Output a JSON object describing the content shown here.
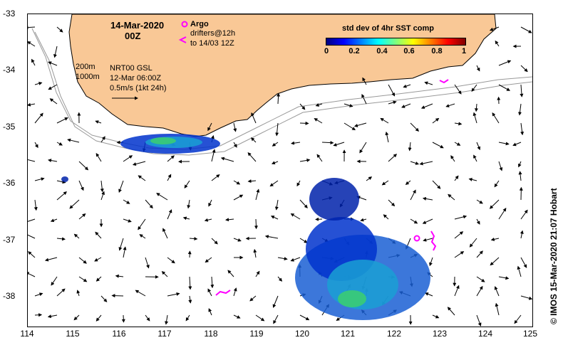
{
  "map": {
    "date": "14-Mar-2020",
    "time": "00Z",
    "argo_label": "Argo",
    "drifters_line1": "drifters@12h",
    "drifters_line2": "to 14/03 12Z",
    "contour_200": "200m",
    "contour_1000": "1000m",
    "product": "NRT00 GSL",
    "product_date": "12-Mar 06:00Z",
    "vector_scale": "0.5m/s (1kt 24h)",
    "colorbar_title": "std dev of 4hr SST comp",
    "colorbar_ticks": [
      "0",
      "0.2",
      "0.4",
      "0.6",
      "0.8",
      "1"
    ],
    "credit": "©  IMOS 15-Mar-2020 21:07 Hobart",
    "lat_labels": [
      "-33",
      "-34",
      "-35",
      "-36",
      "-37",
      "-38"
    ],
    "lon_labels": [
      "114",
      "115",
      "116",
      "117",
      "118",
      "119",
      "120",
      "121",
      "122",
      "123",
      "124",
      "125"
    ],
    "colors": {
      "land": "#f9c896",
      "argo": "#ff00ff",
      "drifter": "#ff00ff"
    }
  }
}
